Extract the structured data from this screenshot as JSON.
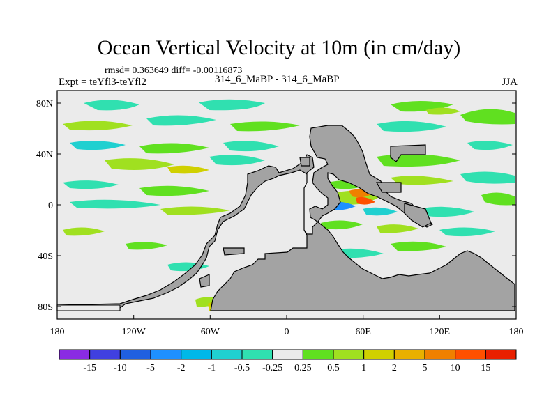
{
  "title": "Ocean Vertical Velocity at 10m (in cm/day)",
  "stats": "rmsd= 0.363649 diff= -0.00116873",
  "experiment": "Expt = teYfl3-teYfl2",
  "cases": "314_6_MaBP - 314_6_MaBP",
  "season": "JJA",
  "axes": {
    "lat_ticks": [
      "80N",
      "40N",
      "0",
      "40S",
      "80S"
    ],
    "lon_ticks": [
      "180",
      "120W",
      "60W",
      "0",
      "60E",
      "120E",
      "180"
    ]
  },
  "colorbar": {
    "labels": [
      "-15",
      "-10",
      "-5",
      "-2",
      "-1",
      "-0.5",
      "-0.25",
      "0.25",
      "0.5",
      "1",
      "2",
      "5",
      "10",
      "15"
    ],
    "colors": [
      "#8a2be2",
      "#4040e0",
      "#2060e0",
      "#1e90ff",
      "#00b8e8",
      "#20d0d0",
      "#30e0b0",
      "#ebebeb",
      "#60e020",
      "#a0e020",
      "#d0d000",
      "#e8b000",
      "#f08000",
      "#ff5000",
      "#e82000"
    ]
  },
  "colors": {
    "land": "#a3a3a3",
    "ocean_neutral": "#ebebeb"
  }
}
